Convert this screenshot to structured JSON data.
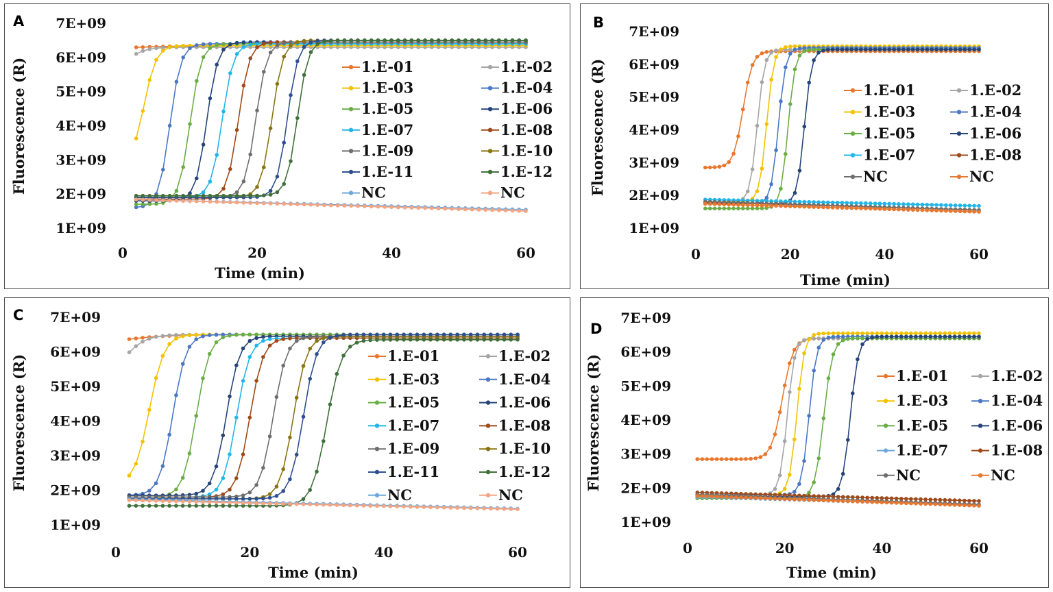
{
  "chart_data": [
    {
      "panel": "A",
      "type": "line",
      "xlabel": "Time (min)",
      "ylabel": "Fluorescence (R)",
      "xlim": [
        0,
        60
      ],
      "ylim": [
        1000000000,
        7000000000
      ],
      "xticks": [
        "0",
        "20",
        "40",
        "60"
      ],
      "yticks": [
        "1E+09",
        "2E+09",
        "3E+09",
        "4E+09",
        "5E+09",
        "6E+09",
        "7E+09"
      ],
      "legend_position": "right",
      "series": [
        {
          "name": "1.E-01",
          "color": "#e8772e",
          "start": 6100000000.0,
          "plateau": 6350000000.0,
          "mid": -5,
          "k": 0.18,
          "drift": 0
        },
        {
          "name": "1.E-02",
          "color": "#a5a5a5",
          "start": 5300000000.0,
          "plateau": 6300000000.0,
          "mid": 0,
          "k": 0.7,
          "drift": 0
        },
        {
          "name": "1.E-03",
          "color": "#f2c200",
          "start": 2900000000.0,
          "plateau": 6350000000.0,
          "mid": 3.2,
          "k": 1.1,
          "drift": 0
        },
        {
          "name": "1.E-04",
          "color": "#4a78c4",
          "start": 1600000000.0,
          "plateau": 6400000000.0,
          "mid": 7,
          "k": 1.2,
          "drift": 0
        },
        {
          "name": "1.E-05",
          "color": "#6aad45",
          "start": 1700000000.0,
          "plateau": 6400000000.0,
          "mid": 10,
          "k": 1.2,
          "drift": 0
        },
        {
          "name": "1.E-06",
          "color": "#264478",
          "start": 1800000000.0,
          "plateau": 6450000000.0,
          "mid": 12.5,
          "k": 1.2,
          "drift": 0
        },
        {
          "name": "1.E-07",
          "color": "#21b6e8",
          "start": 1900000000.0,
          "plateau": 6400000000.0,
          "mid": 14.8,
          "k": 1.2,
          "drift": 0
        },
        {
          "name": "1.E-08",
          "color": "#9e4a1a",
          "start": 1850000000.0,
          "plateau": 6450000000.0,
          "mid": 17.2,
          "k": 1.2,
          "drift": 0
        },
        {
          "name": "1.E-09",
          "color": "#6e6e6e",
          "start": 1900000000.0,
          "plateau": 6450000000.0,
          "mid": 19.8,
          "k": 1.2,
          "drift": 0
        },
        {
          "name": "1.E-10",
          "color": "#8a7412",
          "start": 1900000000.0,
          "plateau": 6500000000.0,
          "mid": 22.2,
          "k": 1.2,
          "drift": 0
        },
        {
          "name": "1.E-11",
          "color": "#2e4f8f",
          "start": 1900000000.0,
          "plateau": 6500000000.0,
          "mid": 24.5,
          "k": 1.25,
          "drift": 0
        },
        {
          "name": "1.E-12",
          "color": "#40703a",
          "start": 1950000000.0,
          "plateau": 6500000000.0,
          "mid": 26,
          "k": 1.25,
          "drift": 0
        },
        {
          "name": "NC",
          "color": "#6fa8dc",
          "start": 1850000000.0,
          "plateau": 1850000000.0,
          "mid": 1000,
          "k": 1,
          "drift": -310000000.0
        },
        {
          "name": "NC",
          "color": "#f4a582",
          "start": 1850000000.0,
          "plateau": 1850000000.0,
          "mid": 1000,
          "k": 1,
          "drift": -350000000.0
        }
      ]
    },
    {
      "panel": "B",
      "type": "line",
      "xlabel": "Time (min)",
      "ylabel": "Fluorescence (R)",
      "xlim": [
        0,
        60
      ],
      "ylim": [
        1000000000,
        7000000000
      ],
      "xticks": [
        "0",
        "20",
        "40",
        "60"
      ],
      "yticks": [
        "1E+09",
        "2E+09",
        "3E+09",
        "4E+09",
        "5E+09",
        "6E+09",
        "7E+09"
      ],
      "legend_position": "right",
      "series": [
        {
          "name": "1.E-01",
          "color": "#e8772e",
          "start": 2850000000.0,
          "plateau": 6400000000.0,
          "mid": 10,
          "k": 1.0,
          "drift": 0
        },
        {
          "name": "1.E-02",
          "color": "#a5a5a5",
          "start": 1800000000.0,
          "plateau": 6450000000.0,
          "mid": 13,
          "k": 1.3,
          "drift": 0
        },
        {
          "name": "1.E-03",
          "color": "#f2c200",
          "start": 1800000000.0,
          "plateau": 6550000000.0,
          "mid": 15,
          "k": 1.3,
          "drift": 0
        },
        {
          "name": "1.E-04",
          "color": "#4a78c4",
          "start": 1750000000.0,
          "plateau": 6500000000.0,
          "mid": 17.5,
          "k": 1.3,
          "drift": 0
        },
        {
          "name": "1.E-05",
          "color": "#6aad45",
          "start": 1600000000.0,
          "plateau": 6450000000.0,
          "mid": 19.5,
          "k": 1.3,
          "drift": 0
        },
        {
          "name": "1.E-06",
          "color": "#264478",
          "start": 1750000000.0,
          "plateau": 6450000000.0,
          "mid": 23,
          "k": 1.3,
          "drift": 0
        },
        {
          "name": "1.E-07",
          "color": "#21b6e8",
          "start": 1880000000.0,
          "plateau": 1880000000.0,
          "mid": 1000,
          "k": 1,
          "drift": -200000000.0
        },
        {
          "name": "1.E-08",
          "color": "#9e4a1a",
          "start": 1800000000.0,
          "plateau": 1800000000.0,
          "mid": 1000,
          "k": 1,
          "drift": -250000000.0
        },
        {
          "name": "NC",
          "color": "#6e6e6e",
          "start": 1820000000.0,
          "plateau": 1820000000.0,
          "mid": 1000,
          "k": 1,
          "drift": -270000000.0
        },
        {
          "name": "NC",
          "color": "#e8772e",
          "start": 1750000000.0,
          "plateau": 1750000000.0,
          "mid": 1000,
          "k": 1,
          "drift": -250000000.0
        }
      ]
    },
    {
      "panel": "C",
      "type": "line",
      "xlabel": "Time (min)",
      "ylabel": "Fluorescence (R)",
      "xlim": [
        0,
        60
      ],
      "ylim": [
        1000000000,
        7000000000
      ],
      "xticks": [
        "0",
        "20",
        "40",
        "60"
      ],
      "yticks": [
        "1E+09",
        "2E+09",
        "3E+09",
        "4E+09",
        "5E+09",
        "6E+09",
        "7E+09"
      ],
      "legend_position": "right",
      "series": [
        {
          "name": "1.E-01",
          "color": "#e8772e",
          "start": 6000000000.0,
          "plateau": 6500000000.0,
          "mid": -2,
          "k": 0.25,
          "drift": 0
        },
        {
          "name": "1.E-02",
          "color": "#a5a5a5",
          "start": 5050000000.0,
          "plateau": 6500000000.0,
          "mid": 1,
          "k": 0.6,
          "drift": 0
        },
        {
          "name": "1.E-03",
          "color": "#f2c200",
          "start": 2150000000.0,
          "plateau": 6500000000.0,
          "mid": 5,
          "k": 0.9,
          "drift": 0
        },
        {
          "name": "1.E-04",
          "color": "#4a78c4",
          "start": 1850000000.0,
          "plateau": 6500000000.0,
          "mid": 8.5,
          "k": 1.0,
          "drift": 0
        },
        {
          "name": "1.E-05",
          "color": "#6aad45",
          "start": 1800000000.0,
          "plateau": 6500000000.0,
          "mid": 12,
          "k": 1.0,
          "drift": 0
        },
        {
          "name": "1.E-06",
          "color": "#264478",
          "start": 1850000000.0,
          "plateau": 6450000000.0,
          "mid": 16.5,
          "k": 1.0,
          "drift": 0
        },
        {
          "name": "1.E-07",
          "color": "#21b6e8",
          "start": 1800000000.0,
          "plateau": 6400000000.0,
          "mid": 18,
          "k": 1.0,
          "drift": 0
        },
        {
          "name": "1.E-08",
          "color": "#9e4a1a",
          "start": 1800000000.0,
          "plateau": 6400000000.0,
          "mid": 20,
          "k": 1.0,
          "drift": 0
        },
        {
          "name": "1.E-09",
          "color": "#6e6e6e",
          "start": 1800000000.0,
          "plateau": 6450000000.0,
          "mid": 23.5,
          "k": 1.0,
          "drift": 0
        },
        {
          "name": "1.E-10",
          "color": "#8a7412",
          "start": 1750000000.0,
          "plateau": 6450000000.0,
          "mid": 26.5,
          "k": 1.0,
          "drift": 0
        },
        {
          "name": "1.E-11",
          "color": "#2e4f8f",
          "start": 1750000000.0,
          "plateau": 6500000000.0,
          "mid": 28,
          "k": 1.0,
          "drift": 0
        },
        {
          "name": "1.E-12",
          "color": "#40703a",
          "start": 1550000000.0,
          "plateau": 6350000000.0,
          "mid": 31.5,
          "k": 0.9,
          "drift": 0
        },
        {
          "name": "NC",
          "color": "#6fa8dc",
          "start": 1750000000.0,
          "plateau": 1750000000.0,
          "mid": 1000,
          "k": 1,
          "drift": -280000000.0
        },
        {
          "name": "NC",
          "color": "#f4a582",
          "start": 1720000000.0,
          "plateau": 1720000000.0,
          "mid": 1000,
          "k": 1,
          "drift": -270000000.0
        }
      ]
    },
    {
      "panel": "D",
      "type": "line",
      "xlabel": "Time (min)",
      "ylabel": "Fluorescence (R)",
      "xlim": [
        0,
        60
      ],
      "ylim": [
        1000000000,
        7000000000
      ],
      "xticks": [
        "0",
        "20",
        "40",
        "60"
      ],
      "yticks": [
        "1E+09",
        "2E+09",
        "3E+09",
        "4E+09",
        "5E+09",
        "6E+09",
        "7E+09"
      ],
      "legend_position": "right",
      "series": [
        {
          "name": "1.E-01",
          "color": "#e8772e",
          "start": 2850000000.0,
          "plateau": 6400000000.0,
          "mid": 19.5,
          "k": 0.9,
          "drift": 0
        },
        {
          "name": "1.E-02",
          "color": "#a5a5a5",
          "start": 1800000000.0,
          "plateau": 6400000000.0,
          "mid": 20.5,
          "k": 1.3,
          "drift": 0
        },
        {
          "name": "1.E-03",
          "color": "#f2c200",
          "start": 1800000000.0,
          "plateau": 6550000000.0,
          "mid": 22.5,
          "k": 1.3,
          "drift": 0
        },
        {
          "name": "1.E-04",
          "color": "#4a78c4",
          "start": 1800000000.0,
          "plateau": 6450000000.0,
          "mid": 25,
          "k": 1.3,
          "drift": 0
        },
        {
          "name": "1.E-05",
          "color": "#6aad45",
          "start": 1700000000.0,
          "plateau": 6400000000.0,
          "mid": 28,
          "k": 1.1,
          "drift": 0
        },
        {
          "name": "1.E-06",
          "color": "#264478",
          "start": 1750000000.0,
          "plateau": 6450000000.0,
          "mid": 33.5,
          "k": 1.2,
          "drift": 0
        },
        {
          "name": "1.E-07",
          "color": "#6fa8dc",
          "start": 1750000000.0,
          "plateau": 1750000000.0,
          "mid": 1000,
          "k": 1,
          "drift": -250000000.0
        },
        {
          "name": "1.E-08",
          "color": "#9e4a1a",
          "start": 1880000000.0,
          "plateau": 1880000000.0,
          "mid": 1000,
          "k": 1,
          "drift": -260000000.0
        },
        {
          "name": "NC",
          "color": "#6e6e6e",
          "start": 1820000000.0,
          "plateau": 1820000000.0,
          "mid": 1000,
          "k": 1,
          "drift": -300000000.0
        },
        {
          "name": "NC",
          "color": "#e8772e",
          "start": 1780000000.0,
          "plateau": 1780000000.0,
          "mid": 1000,
          "k": 1,
          "drift": -300000000.0
        }
      ]
    }
  ]
}
